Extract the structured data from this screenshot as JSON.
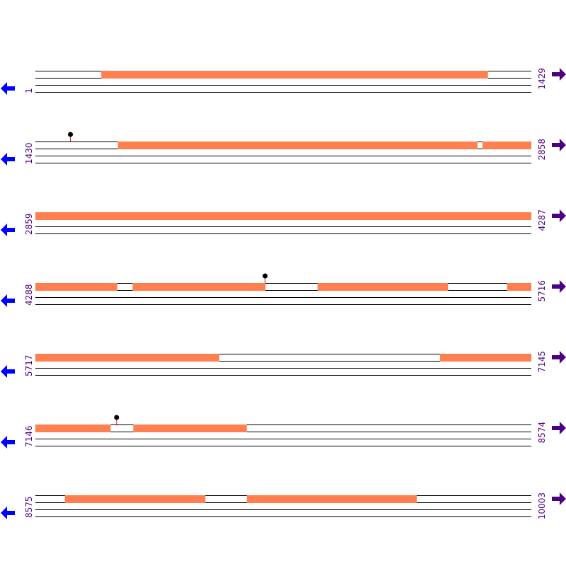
{
  "colors": {
    "feature": "#ff7f50",
    "line": "#000000",
    "marker_stem": "#ff0000",
    "marker_head": "#000000",
    "left_arrow": "#0000ff",
    "right_arrow": "#4b0082",
    "labels": "#4b0082"
  },
  "bp_per_row": 1429,
  "rows": [
    {
      "start": 1,
      "end": 1429,
      "start_label": "1",
      "end_label": "1429",
      "features": [
        [
          191,
          1304
        ]
      ],
      "markers": []
    },
    {
      "start": 1430,
      "end": 2858,
      "start_label": "1430",
      "end_label": "2858",
      "features": [
        [
          1668,
          2703
        ],
        [
          2718,
          2858
        ]
      ],
      "markers": [
        1531
      ]
    },
    {
      "start": 2859,
      "end": 4287,
      "start_label": "2859",
      "end_label": "4287",
      "features": [
        [
          2859,
          4287
        ]
      ],
      "markers": []
    },
    {
      "start": 4288,
      "end": 5716,
      "start_label": "4288",
      "end_label": "5716",
      "features": [
        [
          4288,
          4523
        ],
        [
          4568,
          4950
        ],
        [
          5101,
          5476
        ],
        [
          5647,
          5716
        ]
      ],
      "markers": [
        4950
      ]
    },
    {
      "start": 5717,
      "end": 7145,
      "start_label": "5717",
      "end_label": "7145",
      "features": [
        [
          5717,
          6246
        ],
        [
          6883,
          7145
        ]
      ],
      "markers": []
    },
    {
      "start": 7146,
      "end": 8574,
      "start_label": "7146",
      "end_label": "8574",
      "features": [
        [
          7146,
          7362
        ],
        [
          7428,
          7754
        ]
      ],
      "markers": [
        7380
      ]
    },
    {
      "start": 8575,
      "end": 10003,
      "start_label": "8575",
      "end_label": "10003",
      "features": [
        [
          8660,
          9064
        ],
        [
          9184,
          9673
        ]
      ],
      "markers": []
    }
  ]
}
